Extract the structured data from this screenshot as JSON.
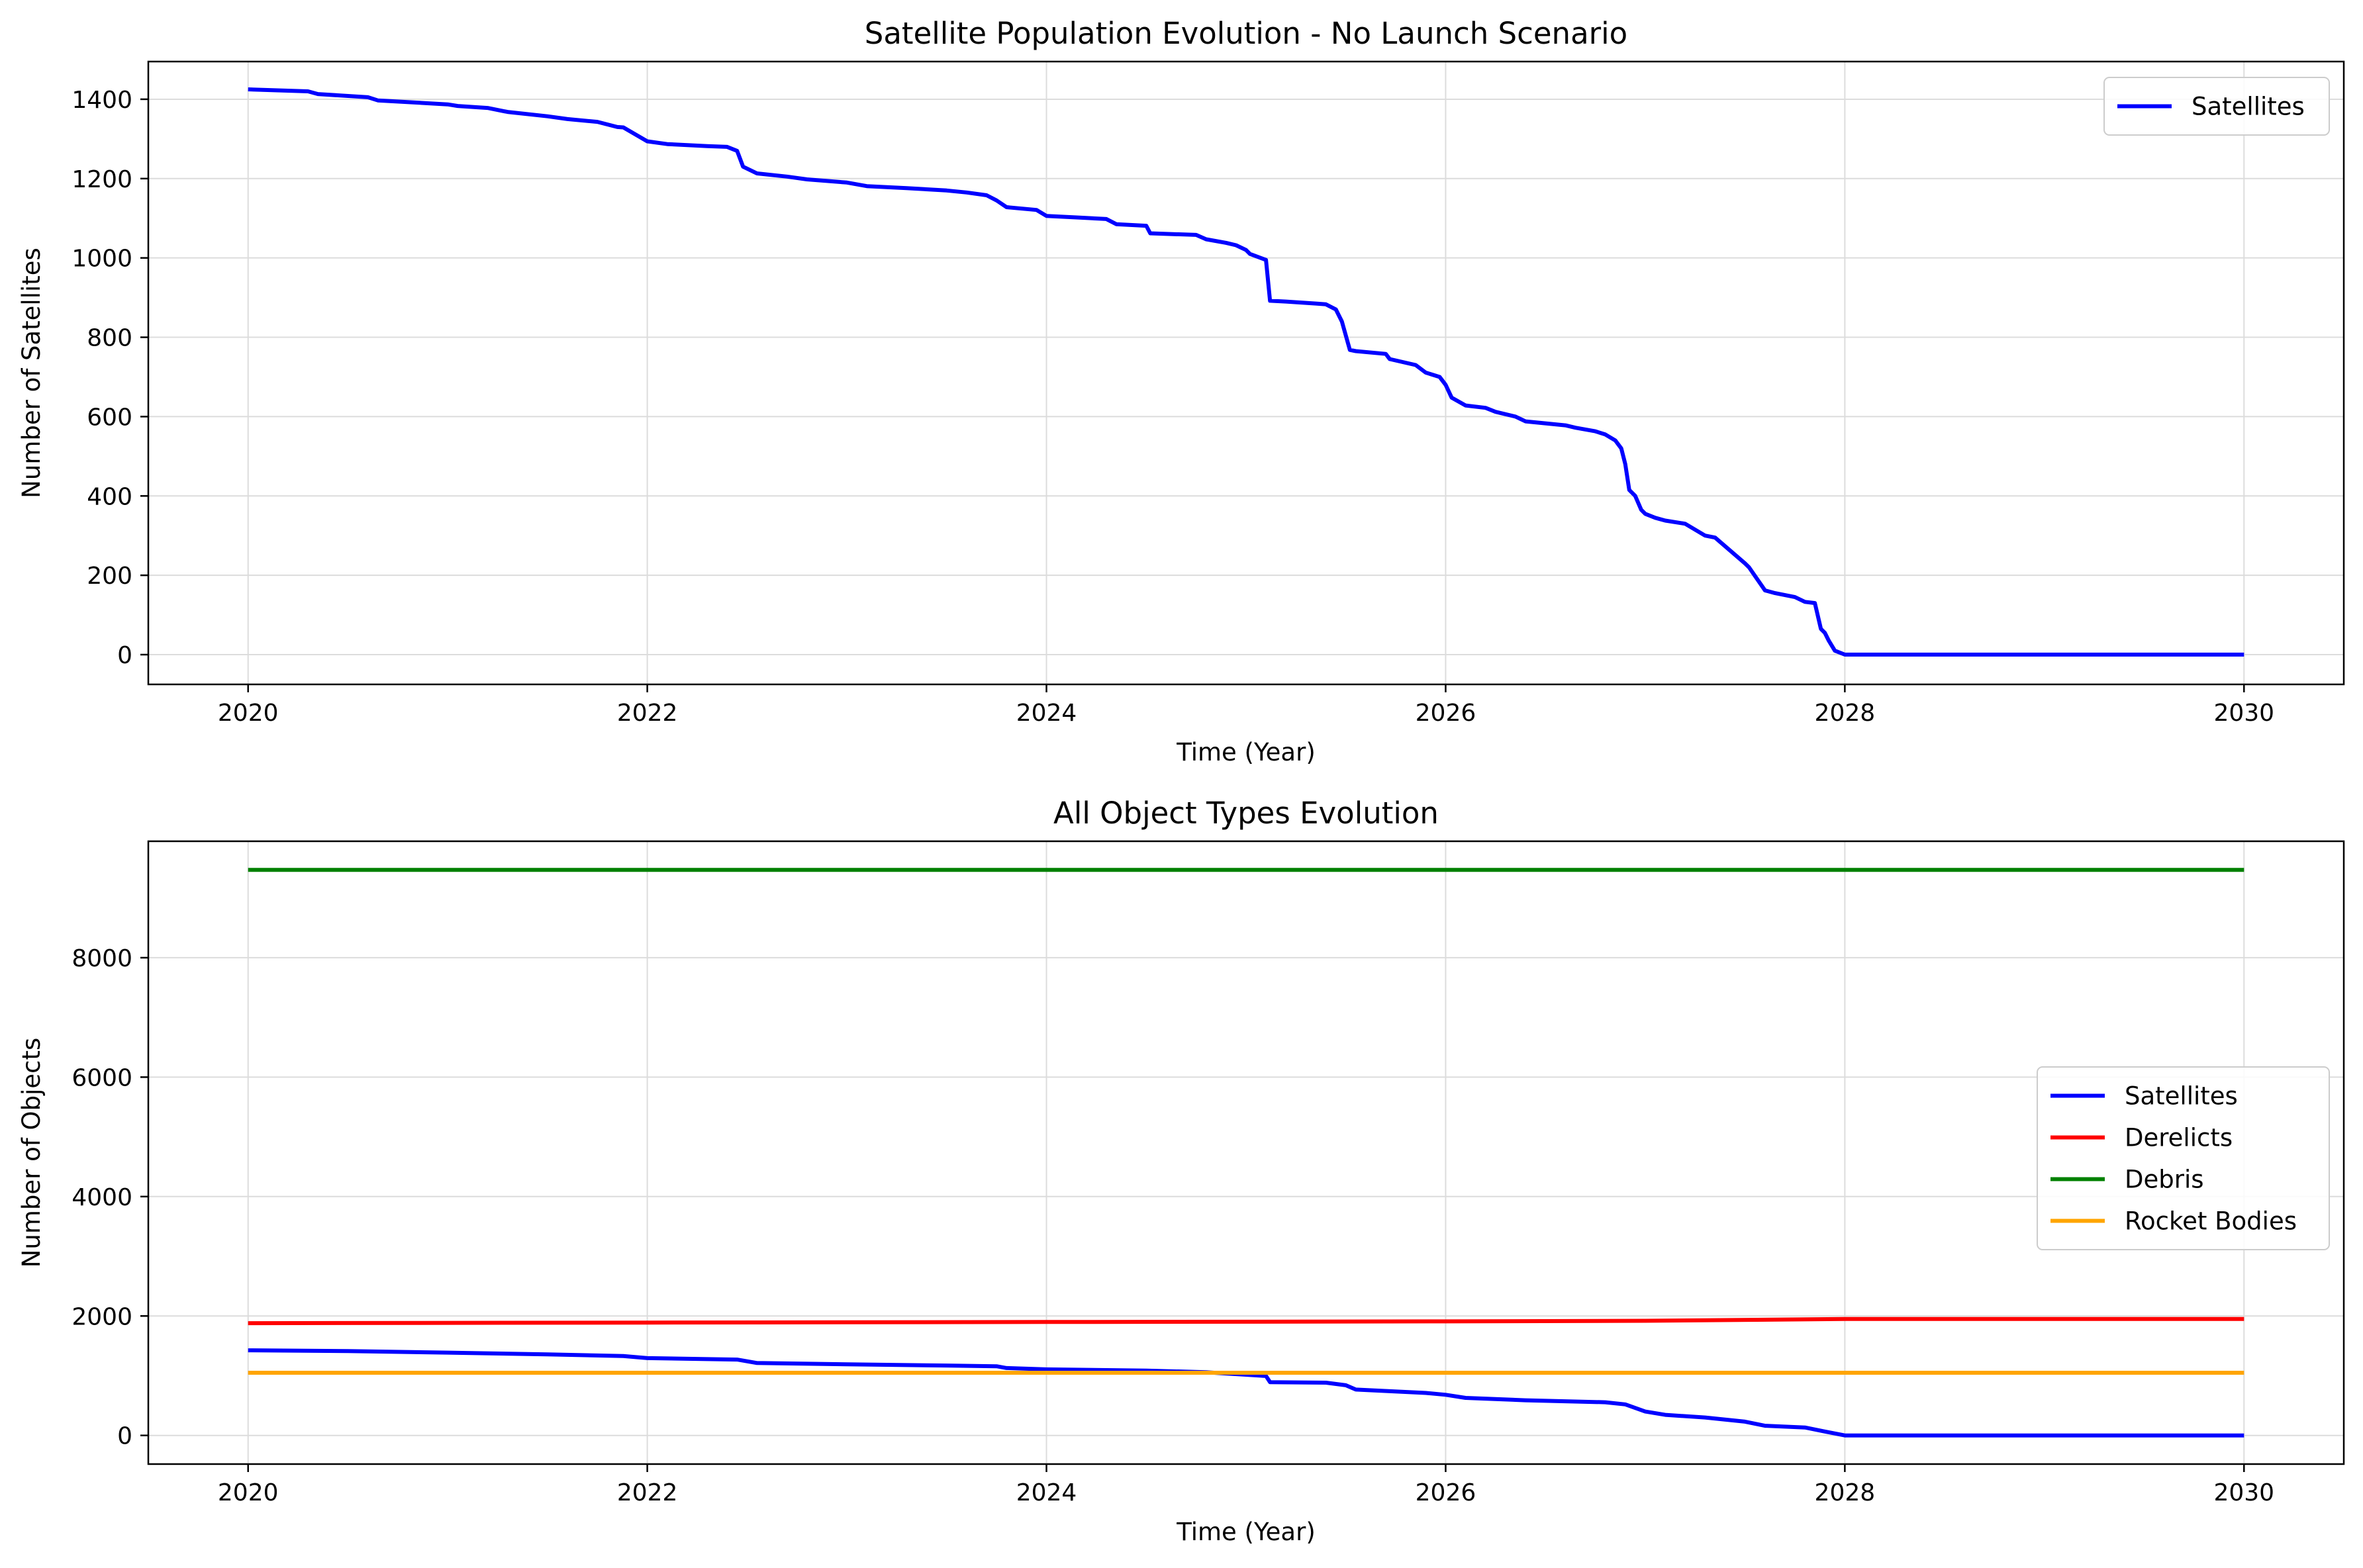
{
  "chart_data": [
    {
      "type": "line",
      "title": "Satellite Population Evolution - No Launch Scenario",
      "xlabel": "Time (Year)",
      "ylabel": "Number of Satellites",
      "xlim": [
        2019.5,
        2030.5
      ],
      "ylim": [
        -75,
        1495
      ],
      "xticks": [
        2020,
        2022,
        2024,
        2026,
        2028,
        2030
      ],
      "yticks": [
        0,
        200,
        400,
        600,
        800,
        1000,
        1200,
        1400
      ],
      "grid": true,
      "legend_position": "upper right",
      "series": [
        {
          "name": "Satellites",
          "color": "#0000ff",
          "x": [
            2020.0,
            2020.3,
            2020.35,
            2020.6,
            2020.65,
            2021.0,
            2021.05,
            2021.2,
            2021.3,
            2021.5,
            2021.6,
            2021.75,
            2021.85,
            2021.88,
            2022.0,
            2022.1,
            2022.3,
            2022.4,
            2022.45,
            2022.48,
            2022.55,
            2022.7,
            2022.8,
            2023.0,
            2023.1,
            2023.3,
            2023.5,
            2023.6,
            2023.7,
            2023.75,
            2023.8,
            2023.95,
            2024.0,
            2024.15,
            2024.3,
            2024.35,
            2024.5,
            2024.52,
            2024.75,
            2024.8,
            2024.9,
            2024.95,
            2025.0,
            2025.02,
            2025.1,
            2025.12,
            2025.2,
            2025.35,
            2025.4,
            2025.45,
            2025.48,
            2025.52,
            2025.55,
            2025.7,
            2025.72,
            2025.85,
            2025.9,
            2025.97,
            2026.0,
            2026.03,
            2026.1,
            2026.2,
            2026.25,
            2026.35,
            2026.4,
            2026.6,
            2026.65,
            2026.75,
            2026.8,
            2026.85,
            2026.88,
            2026.9,
            2026.92,
            2026.95,
            2026.98,
            2027.0,
            2027.05,
            2027.1,
            2027.2,
            2027.3,
            2027.35,
            2027.5,
            2027.52,
            2027.6,
            2027.65,
            2027.75,
            2027.8,
            2027.85,
            2027.88,
            2027.9,
            2027.92,
            2027.95,
            2028.0,
            2030.0
          ],
          "y": [
            1425,
            1420,
            1413,
            1405,
            1397,
            1387,
            1383,
            1378,
            1368,
            1357,
            1350,
            1343,
            1330,
            1329,
            1294,
            1287,
            1282,
            1280,
            1270,
            1230,
            1213,
            1205,
            1198,
            1190,
            1181,
            1176,
            1170,
            1165,
            1158,
            1145,
            1128,
            1121,
            1106,
            1102,
            1098,
            1085,
            1081,
            1062,
            1058,
            1047,
            1038,
            1032,
            1020,
            1010,
            995,
            892,
            890,
            885,
            883,
            870,
            840,
            768,
            765,
            758,
            745,
            730,
            711,
            700,
            680,
            648,
            628,
            622,
            612,
            600,
            588,
            578,
            572,
            563,
            555,
            540,
            520,
            480,
            415,
            400,
            365,
            355,
            345,
            338,
            330,
            300,
            295,
            230,
            220,
            162,
            155,
            145,
            133,
            130,
            65,
            55,
            35,
            10,
            0,
            0
          ]
        }
      ]
    },
    {
      "type": "line",
      "title": "All Object Types Evolution",
      "xlabel": "Time (Year)",
      "ylabel": "Number of Objects",
      "xlim": [
        2019.5,
        2030.5
      ],
      "ylim": [
        -480,
        9950
      ],
      "xticks": [
        2020,
        2022,
        2024,
        2026,
        2028,
        2030
      ],
      "yticks": [
        0,
        2000,
        4000,
        6000,
        8000
      ],
      "grid": true,
      "legend_position": "center right",
      "series": [
        {
          "name": "Satellites",
          "color": "#0000ff",
          "x": [
            2020.0,
            2020.5,
            2021.0,
            2021.5,
            2021.88,
            2022.0,
            2022.45,
            2022.55,
            2023.0,
            2023.5,
            2023.75,
            2023.8,
            2024.0,
            2024.5,
            2024.8,
            2025.1,
            2025.12,
            2025.4,
            2025.5,
            2025.55,
            2025.9,
            2026.0,
            2026.1,
            2026.4,
            2026.8,
            2026.9,
            2027.0,
            2027.1,
            2027.3,
            2027.5,
            2027.6,
            2027.8,
            2027.9,
            2028.0,
            2030.0
          ],
          "y": [
            1425,
            1413,
            1387,
            1357,
            1329,
            1294,
            1270,
            1213,
            1190,
            1170,
            1158,
            1128,
            1106,
            1085,
            1058,
            995,
            892,
            883,
            840,
            768,
            711,
            680,
            628,
            588,
            555,
            520,
            400,
            345,
            300,
            230,
            162,
            133,
            65,
            0,
            0
          ]
        },
        {
          "name": "Derelicts",
          "color": "#ff0000",
          "x": [
            2020.0,
            2022.0,
            2024.0,
            2026.0,
            2027.0,
            2028.0,
            2030.0
          ],
          "y": [
            1880,
            1890,
            1900,
            1910,
            1920,
            1950,
            1950
          ]
        },
        {
          "name": "Debris",
          "color": "#008000",
          "x": [
            2020.0,
            2030.0
          ],
          "y": [
            9470,
            9470
          ]
        },
        {
          "name": "Rocket Bodies",
          "color": "#ffa500",
          "x": [
            2020.0,
            2030.0
          ],
          "y": [
            1050,
            1050
          ]
        }
      ]
    }
  ]
}
